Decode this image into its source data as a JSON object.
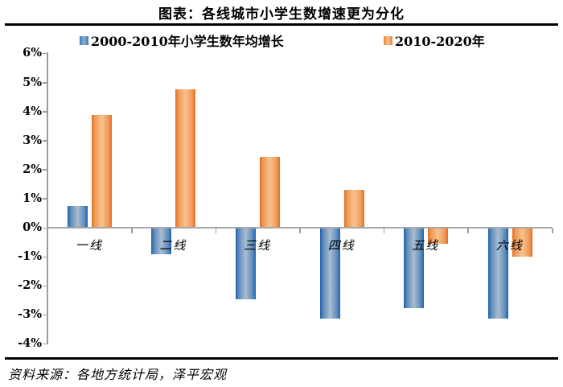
{
  "title": "图表：各线城市小学生数增速更为分化",
  "source": "资料来源：各地方统计局，泽平宏观",
  "legend": [
    {
      "label": "2000-2010年小学生数年均增长",
      "color": "#4f81bd"
    },
    {
      "label": "2010-2020年",
      "color": "#f79646"
    }
  ],
  "chart_data": {
    "type": "bar",
    "title": "图表：各线城市小学生数增速更为分化",
    "categories": [
      "一线",
      "二线",
      "三线",
      "四线",
      "五线",
      "六线"
    ],
    "series": [
      {
        "name": "2000-2010年小学生数年均增长",
        "color": "#4f81bd",
        "values": [
          0.73,
          -0.9,
          -2.45,
          -3.1,
          -2.75,
          -3.1
        ]
      },
      {
        "name": "2010-2020年",
        "color": "#f79646",
        "values": [
          3.85,
          4.75,
          2.4,
          1.27,
          -0.53,
          -0.98
        ]
      }
    ],
    "ylabel": "",
    "xlabel": "",
    "ylim": [
      -4,
      6
    ],
    "ytick_step": 1,
    "ytick_format": "percent",
    "grid": false,
    "legend_position": "top"
  }
}
